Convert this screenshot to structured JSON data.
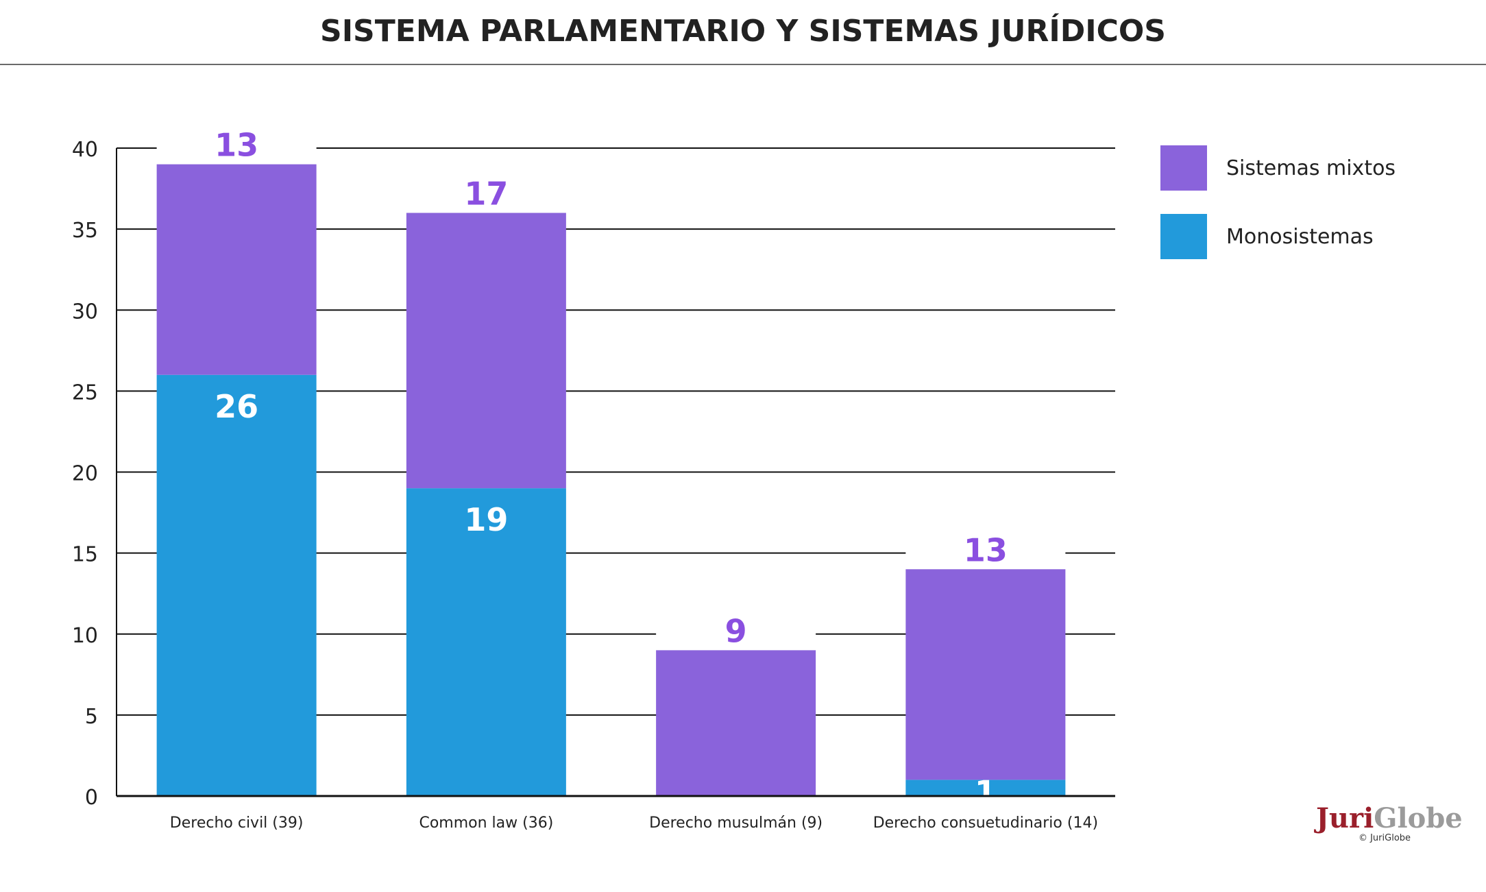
{
  "title": "SISTEMA PARLAMENTARIO Y SISTEMAS JURÍDICOS",
  "chart_data": {
    "type": "bar",
    "stacked": true,
    "categories": [
      "Derecho civil (39)",
      "Common law (36)",
      "Derecho musulmán (9)",
      "Derecho consuetudinario (14)"
    ],
    "series": [
      {
        "name": "Monosistemas",
        "values": [
          26,
          19,
          0,
          1
        ],
        "color": "#229ADB",
        "label_color": "#ffffff"
      },
      {
        "name": "Sistemas mixtos",
        "values": [
          13,
          17,
          9,
          13
        ],
        "color": "#8A63DB",
        "label_color": "#8A4FE0"
      }
    ],
    "ylim": [
      0,
      40
    ],
    "yticks": [
      0,
      5,
      10,
      15,
      20,
      25,
      30,
      35,
      40
    ],
    "grid": true,
    "legend": "top-right",
    "xlabel": "",
    "ylabel": ""
  },
  "legend": [
    {
      "label": "Sistemas mixtos",
      "color": "#8A63DB"
    },
    {
      "label": "Monosistemas",
      "color": "#229ADB"
    }
  ],
  "logo": {
    "juri": "Juri",
    "globe": "Globe",
    "copyright": "© JuriGlobe"
  }
}
